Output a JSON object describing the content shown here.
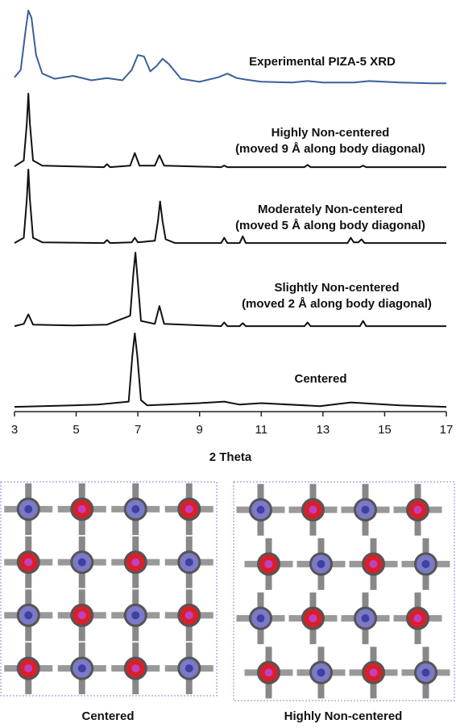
{
  "chart_data": {
    "type": "line",
    "xlabel": "2 Theta",
    "xlim": [
      3,
      17
    ],
    "xticks": [
      3,
      5,
      7,
      9,
      11,
      13,
      15,
      17
    ],
    "ylim": [
      0,
      100
    ],
    "series": [
      {
        "name": "Experimental PIZA-5 XRD",
        "color": "#3a5f9a",
        "x": [
          3,
          3.2,
          3.35,
          3.45,
          3.55,
          3.7,
          3.9,
          4.3,
          4.9,
          5.5,
          6.0,
          6.5,
          6.8,
          7.0,
          7.2,
          7.4,
          7.6,
          7.8,
          8.0,
          8.4,
          9.0,
          9.6,
          9.9,
          10.2,
          10.5,
          11,
          12,
          12.5,
          13,
          14,
          14.5,
          15.5,
          16.5,
          17
        ],
        "values": [
          10,
          20,
          70,
          100,
          90,
          40,
          15,
          8,
          12,
          6,
          9,
          6,
          20,
          40,
          38,
          18,
          25,
          35,
          28,
          8,
          4,
          10,
          15,
          9,
          7,
          4,
          3,
          5,
          3,
          3,
          5,
          3,
          2,
          2
        ]
      },
      {
        "name": "Highly Non-centered",
        "note": "(moved 9 Å along body diagonal)",
        "color": "#111111",
        "x": [
          3,
          3.3,
          3.4,
          3.45,
          3.5,
          3.6,
          3.9,
          5.9,
          6.0,
          6.1,
          6.75,
          6.9,
          7.05,
          7.55,
          7.7,
          7.85,
          9.7,
          9.8,
          9.9,
          12.4,
          12.5,
          12.6,
          14.2,
          14.3,
          14.4,
          17
        ],
        "values": [
          2,
          10,
          60,
          100,
          60,
          10,
          3,
          1,
          5,
          1,
          3,
          20,
          3,
          3,
          17,
          3,
          1,
          3,
          1,
          1,
          4,
          1,
          1,
          3,
          1,
          1
        ]
      },
      {
        "name": "Moderately Non-centered",
        "note": "(moved 5 Å along body diagonal)",
        "color": "#111111",
        "x": [
          3,
          3.3,
          3.4,
          3.45,
          3.5,
          3.6,
          3.9,
          5.9,
          6.0,
          6.1,
          6.8,
          6.9,
          7.0,
          7.55,
          7.65,
          7.72,
          7.8,
          7.9,
          8.2,
          9.7,
          9.8,
          9.9,
          10.3,
          10.4,
          10.5,
          13.8,
          13.9,
          14.0,
          14.15,
          14.25,
          14.35,
          17
        ],
        "values": [
          1,
          8,
          60,
          100,
          60,
          8,
          2,
          1,
          5,
          1,
          2,
          8,
          2,
          4,
          30,
          57,
          30,
          6,
          1,
          1,
          8,
          1,
          1,
          10,
          1,
          1,
          8,
          2,
          2,
          6,
          1,
          1
        ]
      },
      {
        "name": "Slightly Non-centered",
        "note": "(moved 2 Å along body diagonal)",
        "color": "#111111",
        "x": [
          3,
          3.3,
          3.45,
          3.6,
          4.9,
          6.0,
          6.75,
          6.85,
          6.92,
          7.0,
          7.1,
          7.55,
          7.7,
          7.85,
          9.7,
          9.8,
          9.9,
          10.3,
          10.4,
          10.5,
          12.4,
          12.5,
          12.6,
          14.2,
          14.3,
          14.4,
          17
        ],
        "values": [
          1,
          4,
          17,
          3,
          2,
          3,
          15,
          70,
          100,
          60,
          8,
          4,
          28,
          4,
          1,
          6,
          1,
          1,
          5,
          1,
          1,
          6,
          1,
          1,
          8,
          1,
          1
        ]
      },
      {
        "name": "Centered",
        "color": "#111111",
        "x": [
          3,
          4.9,
          5.7,
          6.7,
          6.82,
          6.9,
          6.98,
          7.1,
          7.3,
          9.0,
          9.8,
          10.3,
          11.0,
          12.9,
          13.9,
          15.5,
          17
        ],
        "values": [
          1,
          3,
          4,
          8,
          70,
          100,
          70,
          10,
          3,
          6,
          8,
          4,
          6,
          2,
          7,
          3,
          1
        ]
      }
    ]
  },
  "figures": [
    {
      "caption": "Centered"
    },
    {
      "caption": "Highly Non-centered"
    }
  ]
}
